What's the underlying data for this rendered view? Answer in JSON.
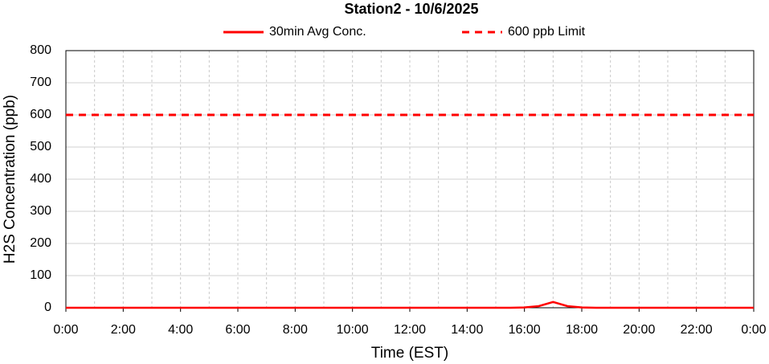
{
  "chart_data": {
    "type": "line",
    "title": "Station2  - 10/6/2025",
    "x_label": "Time (EST)",
    "y_label": "H2S Concentration (ppb)",
    "x": [
      0,
      0.5,
      1,
      1.5,
      2,
      2.5,
      3,
      3.5,
      4,
      4.5,
      5,
      5.5,
      6,
      6.5,
      7,
      7.5,
      8,
      8.5,
      9,
      9.5,
      10,
      10.5,
      11,
      11.5,
      12,
      12.5,
      13,
      13.5,
      14,
      14.5,
      15,
      15.5,
      16,
      16.5,
      17,
      17.5,
      18,
      18.5,
      19,
      19.5,
      20,
      20.5,
      21,
      21.5,
      22,
      22.5,
      23,
      23.5,
      24
    ],
    "series": [
      {
        "name": "30min Avg Conc.",
        "color": "#ff0000",
        "dash": false,
        "values": [
          0,
          0,
          0,
          0,
          0,
          0,
          0,
          0,
          0,
          0,
          0,
          0,
          0,
          0,
          0,
          0,
          0,
          0,
          0,
          0,
          0,
          0,
          0,
          0,
          0,
          0,
          0,
          0,
          0,
          0,
          0,
          0,
          1,
          5,
          18,
          5,
          1,
          0,
          0,
          0,
          0,
          0,
          0,
          0,
          0,
          0,
          0,
          0,
          0
        ]
      },
      {
        "name": "600 ppb Limit",
        "color": "#ff0000",
        "dash": true,
        "values": [
          600,
          600,
          600,
          600,
          600,
          600,
          600,
          600,
          600,
          600,
          600,
          600,
          600,
          600,
          600,
          600,
          600,
          600,
          600,
          600,
          600,
          600,
          600,
          600,
          600,
          600,
          600,
          600,
          600,
          600,
          600,
          600,
          600,
          600,
          600,
          600,
          600,
          600,
          600,
          600,
          600,
          600,
          600,
          600,
          600,
          600,
          600,
          600,
          600
        ]
      }
    ],
    "xlim": [
      0,
      24
    ],
    "xticks": [
      {
        "value": 0,
        "label": "0:00"
      },
      {
        "value": 2,
        "label": "2:00"
      },
      {
        "value": 4,
        "label": "4:00"
      },
      {
        "value": 6,
        "label": "6:00"
      },
      {
        "value": 8,
        "label": "8:00"
      },
      {
        "value": 10,
        "label": "10:00"
      },
      {
        "value": 12,
        "label": "12:00"
      },
      {
        "value": 14,
        "label": "14:00"
      },
      {
        "value": 16,
        "label": "16:00"
      },
      {
        "value": 18,
        "label": "18:00"
      },
      {
        "value": 20,
        "label": "20:00"
      },
      {
        "value": 22,
        "label": "22:00"
      },
      {
        "value": 24,
        "label": "0:00"
      }
    ],
    "x_minor_ticks": [
      1,
      3,
      5,
      7,
      9,
      11,
      13,
      15,
      17,
      19,
      21,
      23
    ],
    "ylim": [
      0,
      800
    ],
    "yticks": [
      0,
      100,
      200,
      300,
      400,
      500,
      600,
      700,
      800
    ],
    "grid": true,
    "legend": "top"
  }
}
